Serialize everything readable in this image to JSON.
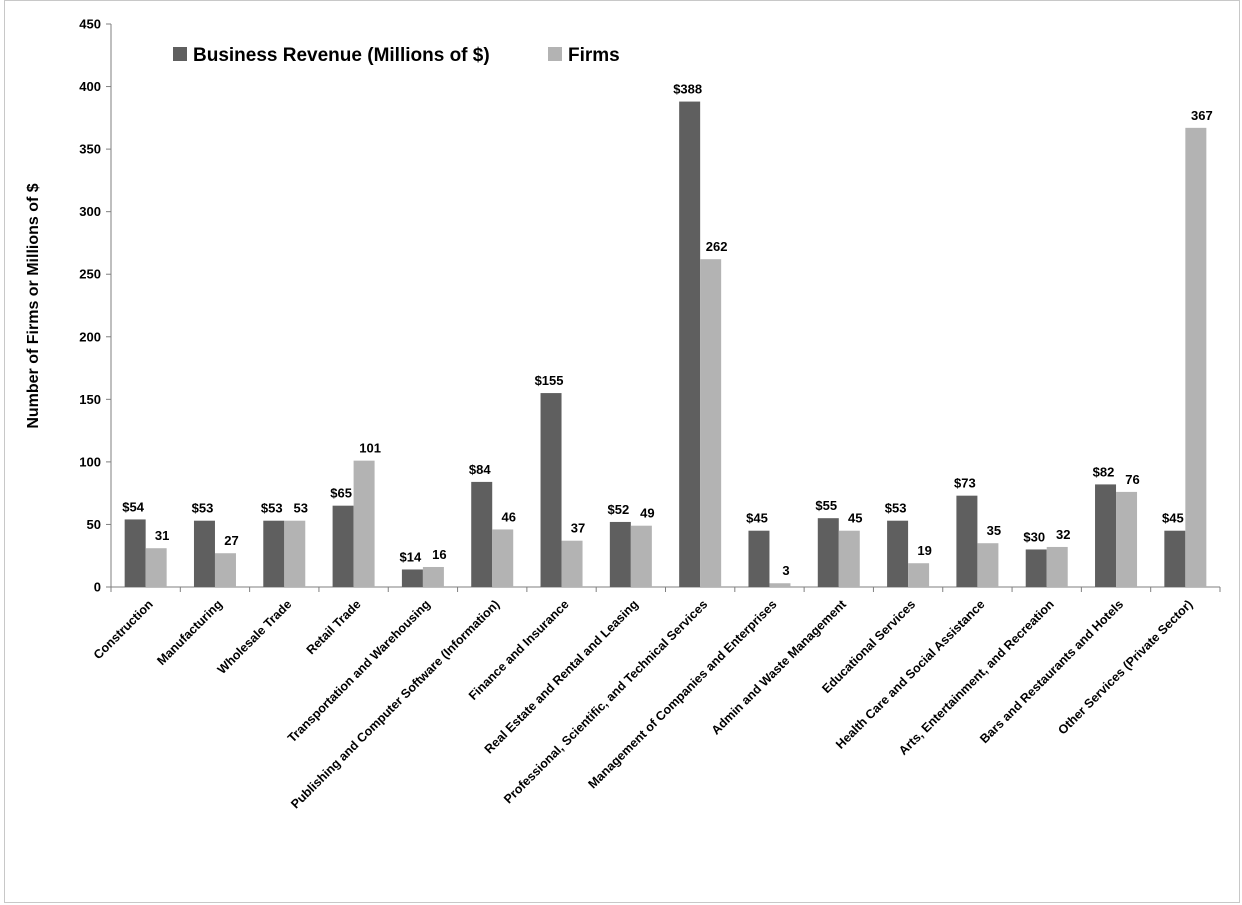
{
  "chart_data": {
    "type": "bar",
    "title": "",
    "xlabel": "",
    "ylabel": "Number of Firms or Millions of $",
    "ylim": [
      0,
      450
    ],
    "yticks": [
      0,
      50,
      100,
      150,
      200,
      250,
      300,
      350,
      400,
      450
    ],
    "grid": false,
    "legend_position": "top-left",
    "categories": [
      "Construction",
      "Manufacturing",
      "Wholesale Trade",
      "Retail Trade",
      "Transportation and Warehousing",
      "Publishing and Computer Software (Information)",
      "Finance and Insurance",
      "Real Estate and Rental and Leasing",
      "Professional, Scientific, and Technical Services",
      "Management of Companies and Enterprises",
      "Admin and Waste Management",
      "Educational Services",
      "Health Care and Social Assistance",
      "Arts, Entertainment, and Recreation",
      "Bars and Restaurants and Hotels",
      "Other Services (Private Sector)"
    ],
    "series": [
      {
        "name": "Business Revenue (Millions of $)",
        "color": "#5f5f5f",
        "values": [
          54,
          53,
          53,
          65,
          14,
          84,
          155,
          52,
          388,
          45,
          55,
          53,
          73,
          30,
          82,
          45
        ],
        "labels": [
          "$54",
          "$53",
          "$53",
          "$65",
          "$14",
          "$84",
          "$155",
          "$52",
          "$388",
          "$45",
          "$55",
          "$53",
          "$73",
          "$30",
          "$82",
          "$45"
        ]
      },
      {
        "name": "Firms",
        "color": "#b3b3b3",
        "values": [
          31,
          27,
          53,
          101,
          16,
          46,
          37,
          49,
          262,
          3,
          45,
          19,
          35,
          32,
          76,
          367
        ],
        "labels": [
          "31",
          "27",
          "53",
          "101",
          "16",
          "46",
          "37",
          "49",
          "262",
          "3",
          "45",
          "19",
          "35",
          "32",
          "76",
          "367"
        ]
      }
    ]
  }
}
